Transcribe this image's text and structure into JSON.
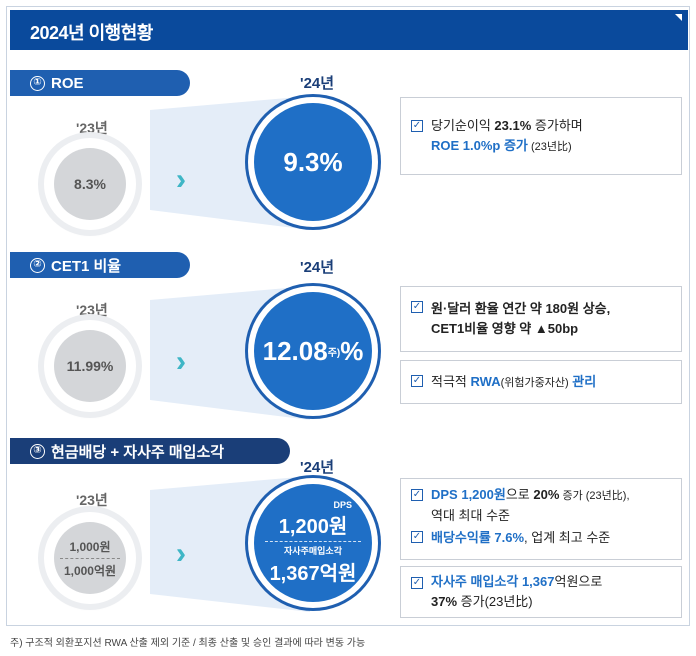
{
  "title": "2024년 이행현황",
  "sections": [
    {
      "num": "①",
      "label": "ROE",
      "prev_year": "'23년",
      "prev_value": "8.3%",
      "cur_year": "'24년",
      "cur_value": "9.3%",
      "notes": [
        {
          "line1_a": "당기순이익 ",
          "line1_b": "23.1%",
          "line1_c": " 증가하며",
          "line2_a": "ROE 1.0%p 증가",
          "line2_b": " (23년比)"
        }
      ]
    },
    {
      "num": "②",
      "label": "CET1 비율",
      "prev_year": "'23년",
      "prev_value": "11.99%",
      "cur_year": "'24년",
      "cur_value": "12.08",
      "cur_sup": "주)",
      "cur_suffix": "%",
      "notes": [
        {
          "line1": "원·달러 환율 연간 약 180원 상승,",
          "line2": "CET1비율 영향 약 ▲50bp"
        },
        {
          "a": "적극적 ",
          "b": "RWA",
          "c": "(위험가중자산)",
          "d": " 관리"
        }
      ]
    },
    {
      "num": "③",
      "label": "현금배당 + 자사주 매입소각",
      "prev_year": "'23년",
      "prev_value_1": "1,000원",
      "prev_value_2": "1,000억원",
      "cur_year": "'24년",
      "dps_label": "DPS",
      "cur_value_1": "1,200원",
      "buyback_label": "자사주매입소각",
      "cur_value_2": "1,367억원",
      "notes": [
        {
          "a": "DPS 1,200원",
          "b": "으로 ",
          "c": "20%",
          "d": " 증가 (23년比),",
          "e": "역대 최대 수준"
        },
        {
          "a": "배당수익률 7.6%",
          "b": ", 업계 최고 수준"
        },
        {
          "a": "자사주 매입소각 1,367",
          "b": "억원으로",
          "c": "37%",
          "d": " 증가(23년比)"
        }
      ]
    }
  ],
  "footnote": "주) 구조적 외환포지션 RWA 산출 제외 기준 / 최종 산출 및 승인 결과에 따라 변동 가능",
  "colors": {
    "title_bg": "#0a4a9c",
    "accent": "#1f6fc6",
    "arrow": "#3fb6c6",
    "navy": "#1a3e78"
  }
}
